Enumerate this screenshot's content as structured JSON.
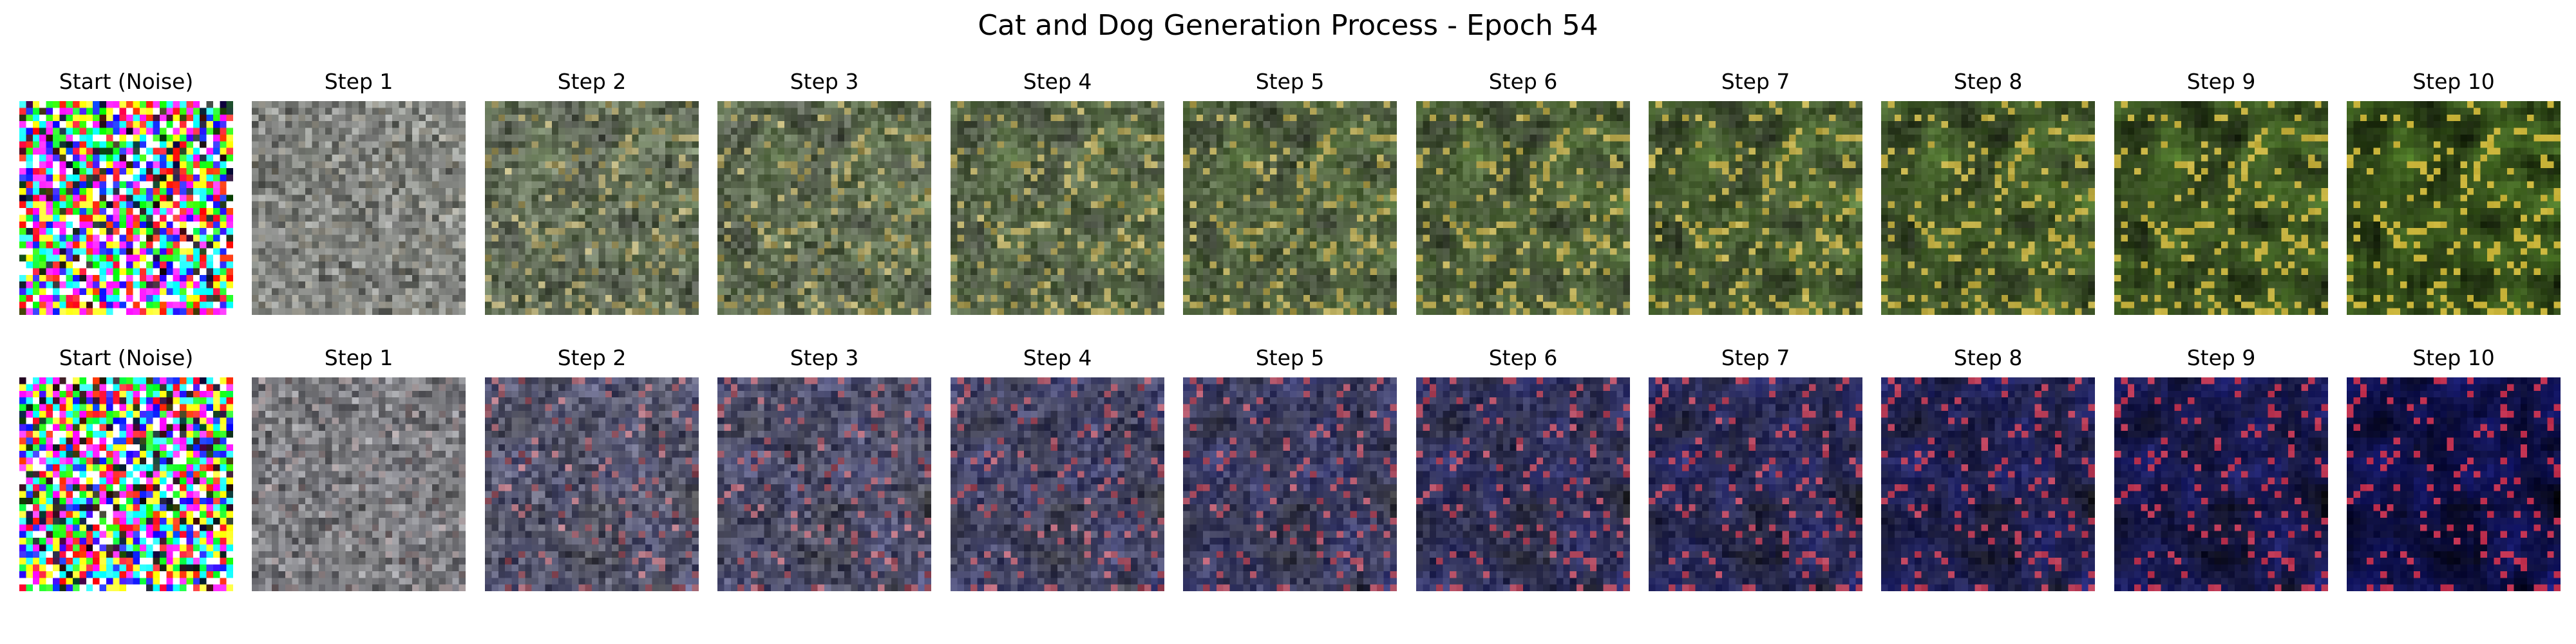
{
  "title": "Cat and Dog Generation Process - Epoch 54",
  "rows": [
    {
      "theme": "green",
      "base_color": "#5a8a2e",
      "accent_color": "#c9b43a",
      "panels": [
        "Start (Noise)",
        "Step 1",
        "Step 2",
        "Step 3",
        "Step 4",
        "Step 5",
        "Step 6",
        "Step 7",
        "Step 8",
        "Step 9",
        "Step 10"
      ]
    },
    {
      "theme": "blue",
      "base_color": "#1b1f8a",
      "accent_color": "#c0304f",
      "panels": [
        "Start (Noise)",
        "Step 1",
        "Step 2",
        "Step 3",
        "Step 4",
        "Step 5",
        "Step 6",
        "Step 7",
        "Step 8",
        "Step 9",
        "Step 10"
      ]
    }
  ]
}
